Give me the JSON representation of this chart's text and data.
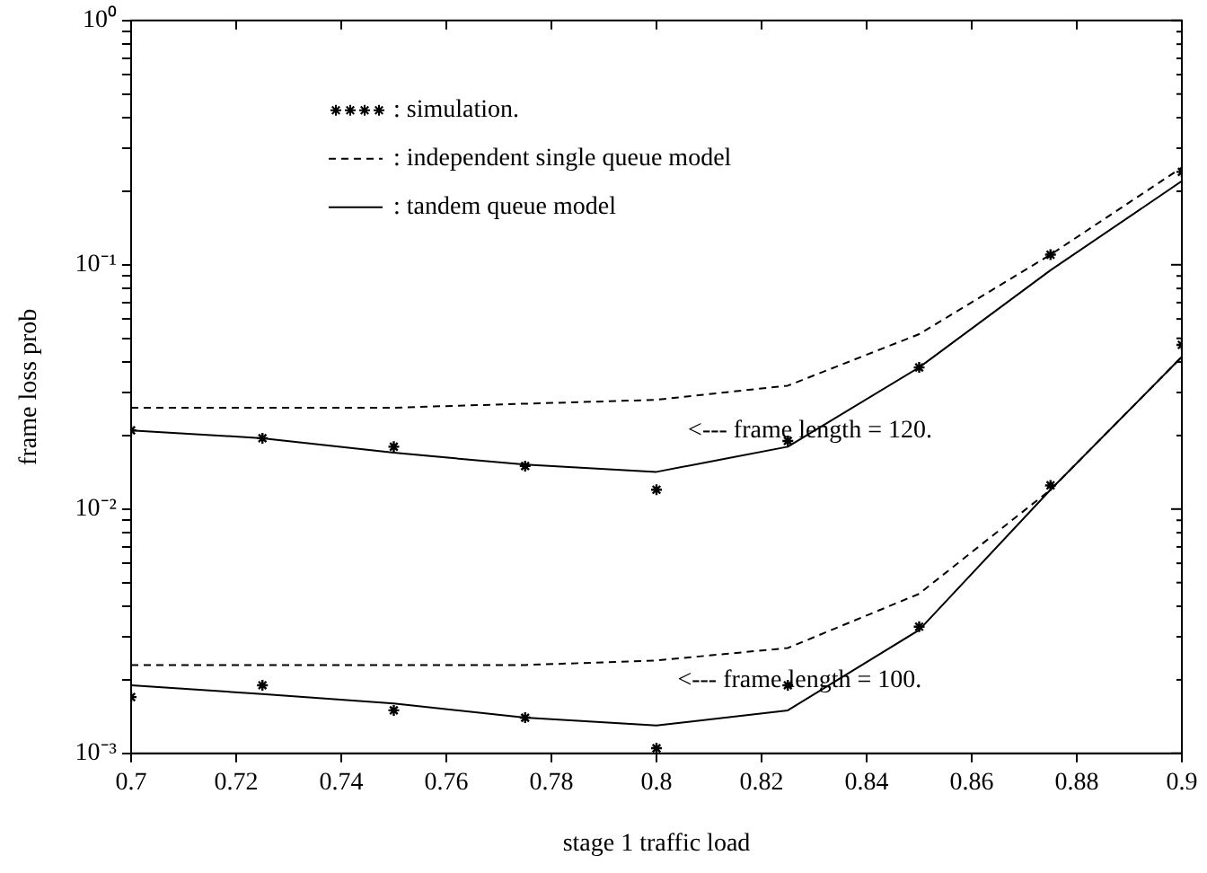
{
  "chart_data": {
    "type": "line",
    "xlabel": "stage 1 traffic load",
    "ylabel": "frame loss prob",
    "x": [
      0.7,
      0.725,
      0.75,
      0.775,
      0.8,
      0.825,
      0.85,
      0.875,
      0.9
    ],
    "xlim": [
      0.7,
      0.9
    ],
    "xticks": [
      0.7,
      0.72,
      0.74,
      0.76,
      0.78,
      0.8,
      0.82,
      0.84,
      0.86,
      0.88,
      0.9
    ],
    "log": "y",
    "ylim": [
      0.001,
      1
    ],
    "yticks": [
      {
        "value": 0.001,
        "label": "10⁻³"
      },
      {
        "value": 0.002,
        "label": null
      },
      {
        "value": 0.003,
        "label": null
      },
      {
        "value": 0.004,
        "label": null
      },
      {
        "value": 0.005,
        "label": null
      },
      {
        "value": 0.006,
        "label": null
      },
      {
        "value": 0.007,
        "label": null
      },
      {
        "value": 0.008,
        "label": null
      },
      {
        "value": 0.009,
        "label": null
      },
      {
        "value": 0.01,
        "label": "10⁻²"
      },
      {
        "value": 0.02,
        "label": null
      },
      {
        "value": 0.03,
        "label": null
      },
      {
        "value": 0.04,
        "label": null
      },
      {
        "value": 0.05,
        "label": null
      },
      {
        "value": 0.06,
        "label": null
      },
      {
        "value": 0.07,
        "label": null
      },
      {
        "value": 0.08,
        "label": null
      },
      {
        "value": 0.09,
        "label": null
      },
      {
        "value": 0.1,
        "label": "10⁻¹"
      },
      {
        "value": 0.2,
        "label": null
      },
      {
        "value": 0.3,
        "label": null
      },
      {
        "value": 0.4,
        "label": null
      },
      {
        "value": 0.5,
        "label": null
      },
      {
        "value": 0.6,
        "label": null
      },
      {
        "value": 0.7,
        "label": null
      },
      {
        "value": 0.8,
        "label": null
      },
      {
        "value": 0.9,
        "label": null
      },
      {
        "value": 1,
        "label": "10⁰"
      }
    ],
    "grid": false,
    "legend": "top left",
    "series": [
      {
        "name": ": simulation.",
        "type": "scatter",
        "marker": "cross",
        "color": "#000000",
        "values": [
          0.021,
          0.0195,
          0.018,
          0.015,
          0.012,
          0.019,
          0.038,
          0.11,
          0.24
        ]
      },
      {
        "name": ": independent single queue model",
        "line_style": "dashed",
        "marker": "none",
        "color": "#000000",
        "values": [
          0.026,
          0.026,
          0.026,
          0.027,
          0.028,
          0.032,
          0.052,
          0.11,
          0.25
        ]
      },
      {
        "name": ": tandem queue model",
        "line_style": "solid",
        "marker": "none",
        "color": "#000000",
        "values": [
          0.021,
          0.0195,
          0.017,
          0.0152,
          0.0142,
          0.018,
          0.038,
          0.095,
          0.22
        ]
      },
      {
        "type": "scatter",
        "marker": "cross",
        "color": "#000000",
        "values": [
          0.0017,
          0.0019,
          0.0015,
          0.0014,
          0.00105,
          0.0019,
          0.0033,
          0.0125,
          0.047
        ]
      },
      {
        "line_style": "dashed",
        "marker": "none",
        "color": "#000000",
        "values": [
          0.0023,
          0.0023,
          0.0023,
          0.0023,
          0.0024,
          0.0027,
          0.0045,
          0.012,
          0.042
        ]
      },
      {
        "line_style": "solid",
        "marker": "none",
        "color": "#000000",
        "values": [
          0.0019,
          0.00175,
          0.0016,
          0.0014,
          0.0013,
          0.0015,
          0.0032,
          0.012,
          0.042
        ]
      }
    ],
    "annotations": [
      "<--- frame length = 120.",
      "<--- frame length = 100."
    ]
  }
}
